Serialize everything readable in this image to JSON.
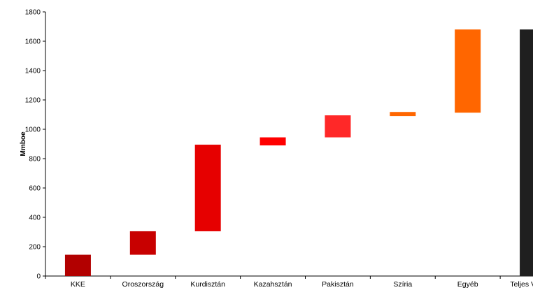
{
  "chart_data": {
    "type": "bar",
    "subtype": "waterfall",
    "ylabel": "Mmboe",
    "ylim": [
      0,
      1800
    ],
    "yticks": [
      0,
      200,
      400,
      600,
      800,
      1000,
      1200,
      1400,
      1600,
      1800
    ],
    "grid": false,
    "legend": "none",
    "categories": [
      "KKE",
      "Oroszország",
      "Kurdisztán",
      "Kazahsztán",
      "Pakisztán",
      "Szíria",
      "Egyéb",
      "Teljes Vagyon"
    ],
    "bars": [
      {
        "category": "KKE",
        "start": 0,
        "end": 145,
        "color": "#B20000"
      },
      {
        "category": "Oroszország",
        "start": 145,
        "end": 305,
        "color": "#C80000"
      },
      {
        "category": "Kurdisztán",
        "start": 305,
        "end": 895,
        "color": "#E60000"
      },
      {
        "category": "Kazahsztán",
        "start": 890,
        "end": 945,
        "color": "#FF0000"
      },
      {
        "category": "Pakisztán",
        "start": 945,
        "end": 1095,
        "color": "#FF2828"
      },
      {
        "category": "Szíria",
        "start": 1090,
        "end": 1118,
        "color": "#FF6600"
      },
      {
        "category": "Egyéb",
        "start": 1113,
        "end": 1680,
        "color": "#FF6600"
      },
      {
        "category": "Teljes Vagyon",
        "start": 0,
        "end": 1680,
        "color": "#1F1F1F"
      }
    ]
  }
}
